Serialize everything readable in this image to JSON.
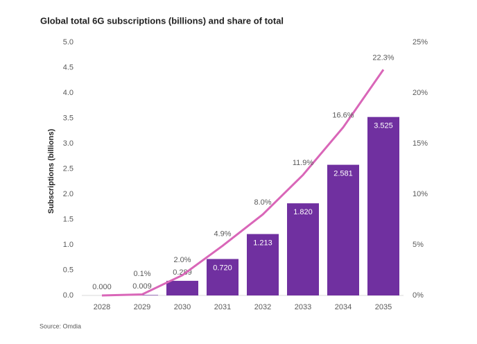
{
  "chart_data": {
    "type": "bar-line",
    "title": "Global total 6G subscriptions (billions) and share of total",
    "y_label": "Subscriptions (billions)",
    "source": "Source: Omdia",
    "categories": [
      "2028",
      "2029",
      "2030",
      "2031",
      "2032",
      "2033",
      "2034",
      "2035"
    ],
    "series": [
      {
        "name": "Subscriptions (billions)",
        "kind": "bar",
        "color": "#7030a0",
        "values": [
          0,
          0.009,
          0.289,
          0.72,
          1.213,
          1.82,
          2.581,
          3.525
        ],
        "value_labels": [
          "0.000",
          "0.009",
          "0.289",
          "0.720",
          "1.213",
          "1.820",
          "2.581",
          "3.525"
        ]
      },
      {
        "name": "Share of total",
        "kind": "line",
        "axis": "y2",
        "color": "#d966b8",
        "values": [
          0,
          0.1,
          2.0,
          4.9,
          8.0,
          11.9,
          16.6,
          22.3
        ],
        "value_labels": [
          null,
          "0.1%",
          "2.0%",
          "4.9%",
          "8.0%",
          "11.9%",
          "16.6%",
          "22.3%"
        ]
      }
    ],
    "ylim": [
      0,
      5
    ],
    "yticks": [
      {
        "value": 0,
        "label": "0.0"
      },
      0.5,
      {
        "value": 1,
        "label": "1.0"
      },
      1.5,
      {
        "value": 2,
        "label": "2.0"
      },
      2.5,
      {
        "value": 3,
        "label": "3.0"
      },
      3.5,
      {
        "value": 4,
        "label": "4.0"
      },
      4.5,
      {
        "value": 5,
        "label": "5.0"
      }
    ],
    "y2lim": [
      0,
      25
    ],
    "y2ticks": [
      {
        "value": 0,
        "label": "0%"
      },
      {
        "value": 5,
        "label": "5%"
      },
      {
        "value": 10,
        "label": "10%"
      },
      {
        "value": 15,
        "label": "15%"
      },
      {
        "value": 20,
        "label": "20%"
      },
      {
        "value": 25,
        "label": "25%"
      }
    ]
  }
}
